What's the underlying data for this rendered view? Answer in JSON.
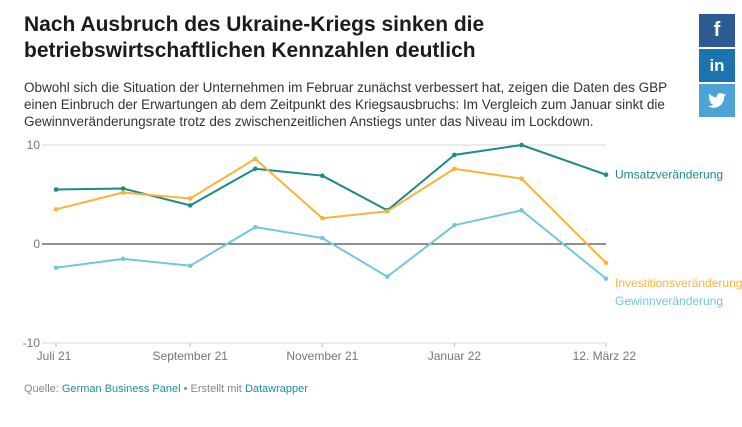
{
  "header": {
    "title": "Nach Ausbruch des Ukraine-Kriegs sinken die betriebswirtschaftlichen Kennzahlen deutlich",
    "subtitle": "Obwohl sich die Situation der Unternehmen im Februar zunächst verbessert hat, zeigen die Daten des GBP einen Einbruch der Erwartungen ab dem Zeitpunkt des Kriegsausbruchs: Im Vergleich zum Januar sinkt die Gewinnveränderungsrate trotz des zwischenzeitlichen Anstiegs unter das Niveau im Lockdown."
  },
  "share": {
    "facebook": "f",
    "linkedin": "in",
    "twitter_icon": "twitter-bird-icon"
  },
  "footer": {
    "source_label": "Quelle:",
    "source_link": "German Business Panel",
    "separator": "•",
    "created_label": "Erstellt mit",
    "created_link": "Datawrapper"
  },
  "chart_data": {
    "type": "line",
    "title": "",
    "xlabel": "",
    "ylabel": "",
    "ylim": [
      -10,
      10
    ],
    "yticks": [
      10,
      0,
      -10
    ],
    "x": [
      "2021-07-01",
      "2021-08-01",
      "2021-09-01",
      "2021-10-01",
      "2021-11-01",
      "2021-12-01",
      "2022-01-01",
      "2022-02-01",
      "2022-03-12"
    ],
    "xticks": [
      {
        "x": "2021-07-01",
        "label": "Juli 21"
      },
      {
        "x": "2021-09-01",
        "label": "September 21"
      },
      {
        "x": "2021-11-01",
        "label": "November 21"
      },
      {
        "x": "2022-01-01",
        "label": "Januar 22"
      },
      {
        "x": "2022-03-12",
        "label": "12. März 22"
      }
    ],
    "series": [
      {
        "name": "Umsatzveränderung",
        "color": "#1d8a85",
        "values": [
          5.5,
          5.6,
          3.9,
          7.6,
          6.9,
          3.4,
          9.0,
          10.0,
          7.0
        ]
      },
      {
        "name": "Investitionsveränderung",
        "color": "#f7b538",
        "values": [
          3.5,
          5.2,
          4.6,
          8.6,
          2.6,
          3.3,
          7.6,
          6.6,
          -1.9
        ]
      },
      {
        "name": "Gewinnveränderung",
        "color": "#6fc9dc",
        "values": [
          -2.4,
          -1.5,
          -2.2,
          1.7,
          0.6,
          -3.3,
          1.9,
          3.4,
          -3.5
        ]
      }
    ],
    "grid": true,
    "legend": "right"
  }
}
